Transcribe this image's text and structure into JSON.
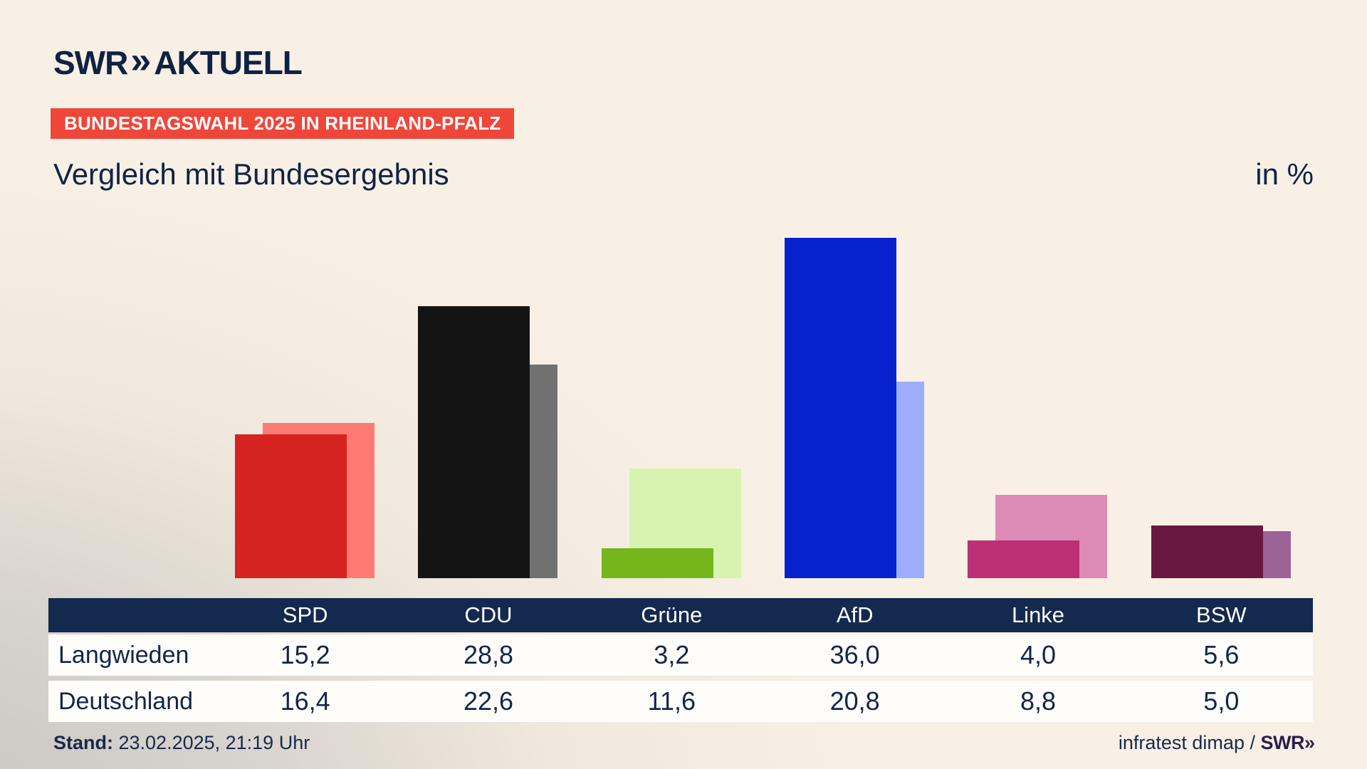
{
  "header": {
    "logo_brand": "SWR",
    "logo_chevrons": "»",
    "logo_product": "AKTUELL",
    "badge": "BUNDESTAGSWAHL 2025 IN RHEINLAND-PFALZ",
    "title": "Vergleich mit Bundesergebnis",
    "unit_label": "in %"
  },
  "chart_data": {
    "type": "bar",
    "categories": [
      "SPD",
      "CDU",
      "Grüne",
      "AfD",
      "Linke",
      "BSW"
    ],
    "series": [
      {
        "name": "Langwieden",
        "values": [
          15.2,
          28.8,
          3.2,
          36.0,
          4.0,
          5.6
        ],
        "colors": [
          "#d62321",
          "#141414",
          "#74b61c",
          "#0721ce",
          "#bd3075",
          "#6a1841"
        ]
      },
      {
        "name": "Deutschland",
        "values": [
          16.4,
          22.6,
          11.6,
          20.8,
          8.8,
          5.0
        ],
        "colors": [
          "#fd7b72",
          "#717171",
          "#d7f3af",
          "#9dadfc",
          "#de8ab7",
          "#9c6399"
        ]
      }
    ],
    "title": "Vergleich mit Bundesergebnis",
    "ylabel": "in %",
    "ylim": [
      0,
      36
    ],
    "grid": false,
    "legend": "none (legend given by table row labels)",
    "value_format": "comma-decimal"
  },
  "table": {
    "columns": [
      "SPD",
      "CDU",
      "Grüne",
      "AfD",
      "Linke",
      "BSW"
    ],
    "rows": [
      {
        "label": "Langwieden",
        "values": [
          "15,2",
          "28,8",
          "3,2",
          "36,0",
          "4,0",
          "5,6"
        ]
      },
      {
        "label": "Deutschland",
        "values": [
          "16,4",
          "22,6",
          "11,6",
          "20,8",
          "8,8",
          "5,0"
        ]
      }
    ]
  },
  "footer": {
    "stand_label": "Stand:",
    "stand_value": " 23.02.2025, 21:19 Uhr",
    "source_text": "infratest dimap / ",
    "source_brand": "SWR",
    "source_brand_chevrons": "»"
  },
  "colors": {
    "background_cream": "#f8f0e5",
    "background_gray": "#c6c2bc",
    "text_navy": "#12254a",
    "badge_red": "#ef463a",
    "table_header_navy": "#14294e",
    "table_row_white": "#fefdfa"
  }
}
